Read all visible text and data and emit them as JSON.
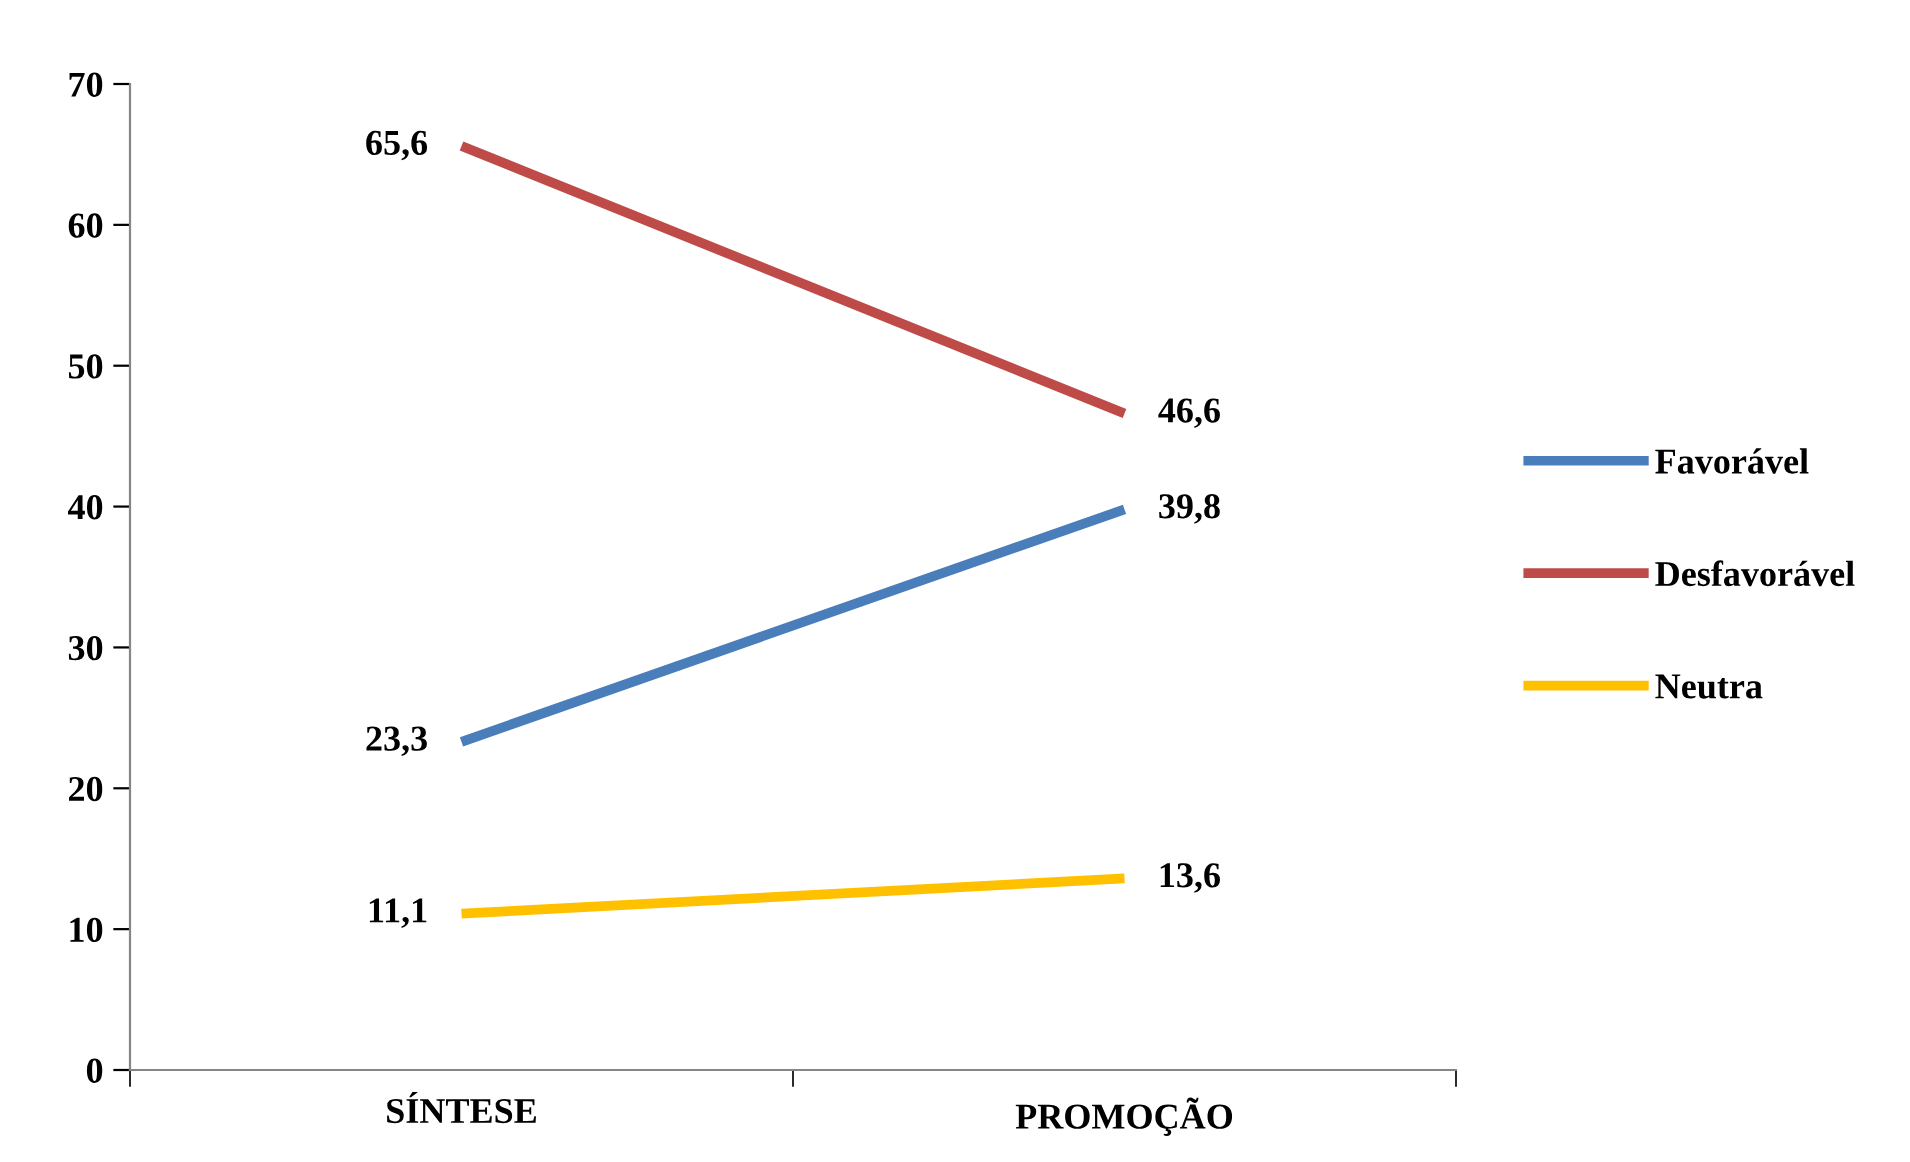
{
  "chart_data": {
    "type": "line",
    "categories": [
      "SÍNTESE",
      "PROMOÇÃO"
    ],
    "series": [
      {
        "name": "Favorável",
        "color": "#4a7ebb",
        "values": [
          23.3,
          39.8
        ],
        "value_labels": [
          "23,3",
          "39,8"
        ]
      },
      {
        "name": "Desfavorável",
        "color": "#be4b48",
        "values": [
          65.6,
          46.6
        ],
        "value_labels": [
          "65,6",
          "46,6"
        ]
      },
      {
        "name": "Neutra",
        "color": "#ffc000",
        "values": [
          11.1,
          13.6
        ],
        "value_labels": [
          "11,1",
          "13,6"
        ]
      }
    ],
    "ylim": [
      0,
      70
    ],
    "yticks": [
      0,
      10,
      20,
      30,
      40,
      50,
      60,
      70
    ],
    "grid": false,
    "legend": "right",
    "marker": "none",
    "line_style": "solid"
  }
}
